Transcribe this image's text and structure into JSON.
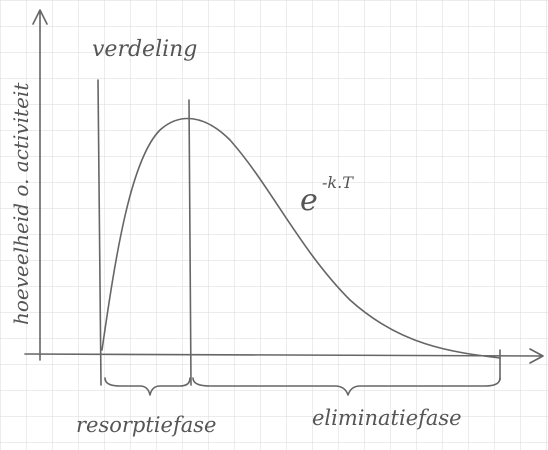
{
  "labels": {
    "y_axis": "hoeveelheid o. activiteit",
    "top": "verdeling",
    "formula_base": "e",
    "formula_exponent": "-k.T",
    "phase_1": "resorptiefase",
    "phase_2": "eliminatiefase"
  }
}
